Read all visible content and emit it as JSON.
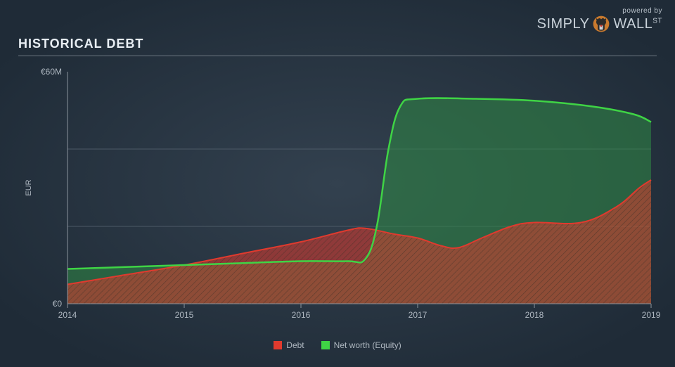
{
  "logo": {
    "powered": "powered by",
    "simply": "SIMPLY",
    "wall": "WALL",
    "st": "ST"
  },
  "title": "HISTORICAL DEBT",
  "chart": {
    "type": "area",
    "background_gradient": {
      "from": "#33414f",
      "to": "#1f2b37"
    },
    "plot_background": "transparent",
    "xlabel": "",
    "ylabel": "EUR",
    "ylabel_fontsize": 11,
    "xlim": [
      2014,
      2019
    ],
    "ylim": [
      0,
      60
    ],
    "xticks": [
      2014,
      2015,
      2016,
      2017,
      2018,
      2019
    ],
    "yticks": [
      0,
      60
    ],
    "ytick_labels": [
      "€0",
      "€60M"
    ],
    "ytick_positions": [
      0,
      60
    ],
    "grid_color": "#4d5a67",
    "grid_y_positions": [
      20,
      40
    ],
    "axis_line_color": "#8a939c",
    "tick_label_color": "#aeb7c0",
    "tick_label_fontsize": 12,
    "series": [
      {
        "name": "Debt",
        "line_color": "#e03a2e",
        "fill_color": "#e03a2e",
        "fill_opacity": 0.55,
        "hatch": true,
        "hatch_color": "#3a3027",
        "line_width": 2,
        "x": [
          2014,
          2014.4,
          2015,
          2015.5,
          2016,
          2016.4,
          2016.55,
          2016.8,
          2017,
          2017.2,
          2017.35,
          2017.55,
          2017.8,
          2018,
          2018.4,
          2018.7,
          2018.9,
          2019
        ],
        "y": [
          5,
          7,
          10,
          13,
          16,
          19,
          19.5,
          18,
          17,
          15,
          14.5,
          17,
          20,
          21,
          21,
          25,
          30,
          32
        ]
      },
      {
        "name": "Net worth (Equity)",
        "line_color": "#3fd445",
        "fill_color": "#2f8a46",
        "fill_opacity": 0.55,
        "hatch": false,
        "line_width": 2.5,
        "x": [
          2014,
          2014.5,
          2015,
          2015.5,
          2016,
          2016.4,
          2016.55,
          2016.65,
          2016.75,
          2016.85,
          2017,
          2017.5,
          2018,
          2018.5,
          2018.85,
          2019
        ],
        "y": [
          9,
          9.5,
          10,
          10.5,
          11,
          11,
          11.5,
          20,
          40,
          51,
          53,
          53,
          52.5,
          51,
          49,
          47
        ]
      }
    ],
    "legend": {
      "position": "bottom-center",
      "items": [
        {
          "label": "Debt",
          "color": "#e03a2e"
        },
        {
          "label": "Net worth (Equity)",
          "color": "#3fd445"
        }
      ]
    }
  }
}
